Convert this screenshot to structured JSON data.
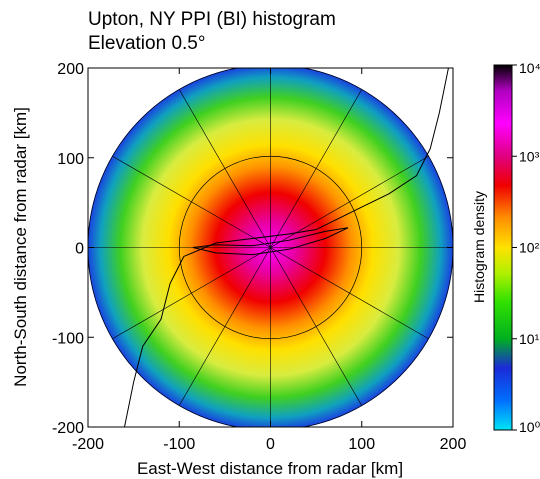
{
  "chart_data": {
    "type": "heatmap",
    "title": "Upton, NY PPI (BI) histogram",
    "subtitle": "Elevation 0.5°",
    "xlabel": "East-West distance from radar [km]",
    "ylabel": "North-South distance from radar [km]",
    "xlim": [
      -200,
      200
    ],
    "ylim": [
      -200,
      200
    ],
    "x_ticks": [
      -200,
      -100,
      0,
      100,
      200
    ],
    "y_ticks": [
      -200,
      -100,
      0,
      100,
      200
    ],
    "range_rings_km": [
      100,
      200
    ],
    "colorbar": {
      "label": "Histogram density",
      "scale": "log",
      "range": [
        1,
        10000
      ],
      "tick_values": [
        1,
        10,
        100,
        1000,
        10000
      ],
      "tick_labels": [
        "10⁰",
        "10¹",
        "10²",
        "10³",
        "10⁴"
      ],
      "colors": [
        "#00e5f5",
        "#0070ff",
        "#1a2ad8",
        "#00b020",
        "#30e000",
        "#b0f000",
        "#ffe200",
        "#ff9000",
        "#f00000",
        "#e00080",
        "#ff00ff",
        "#b000c0",
        "#000000"
      ]
    },
    "density_profile": [
      {
        "range_km": 0,
        "density": 2000
      },
      {
        "range_km": 40,
        "density": 1500
      },
      {
        "range_km": 80,
        "density": 500
      },
      {
        "range_km": 110,
        "density": 120
      },
      {
        "range_km": 150,
        "density": 40
      },
      {
        "range_km": 190,
        "density": 15
      },
      {
        "range_km": 200,
        "density": 8
      }
    ]
  }
}
